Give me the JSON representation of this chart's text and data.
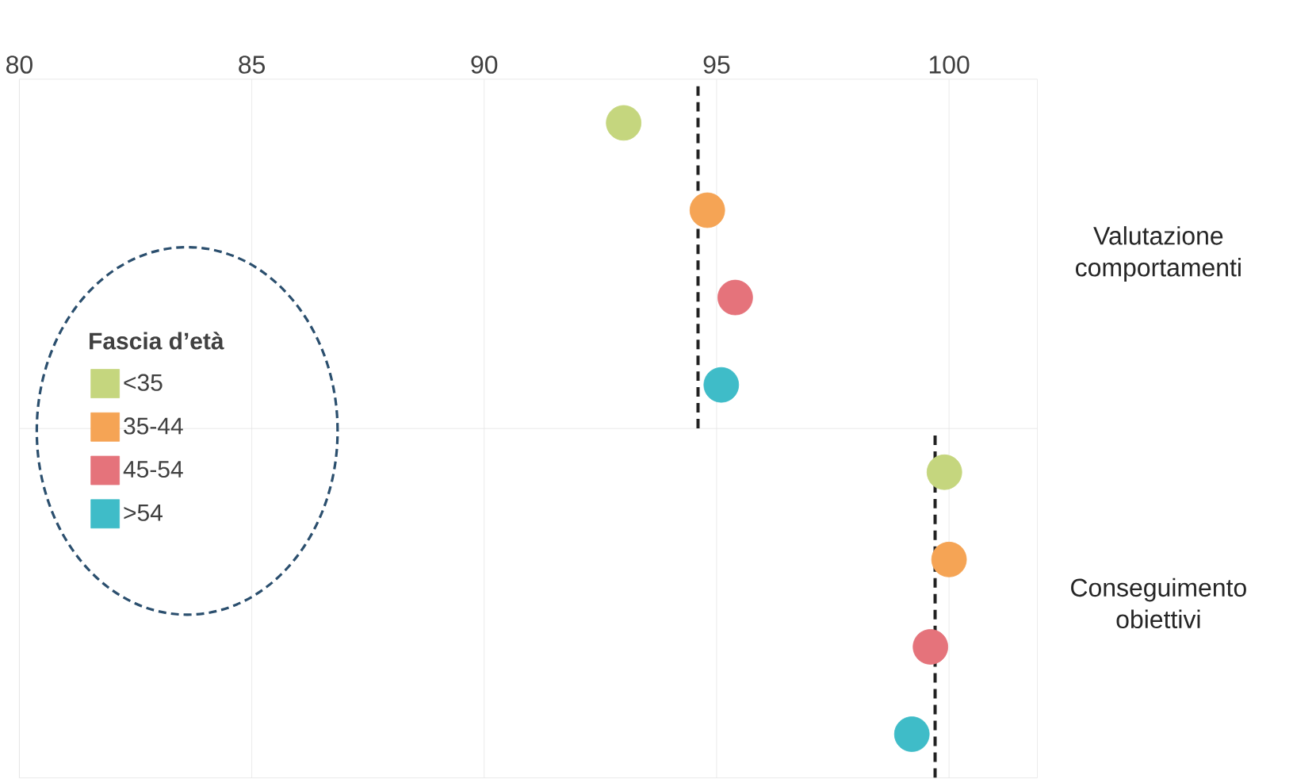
{
  "chart_data": {
    "type": "scatter",
    "orientation": "horizontal",
    "categories": [
      "Valutazione comportamenti",
      "Conseguimento obiettivi"
    ],
    "legend_title": "**Fascia d’età**",
    "legend": "left",
    "grid": "x",
    "marker": "circle",
    "xlim": [
      80,
      101.9
    ],
    "xticks": [
      80,
      85,
      90,
      95,
      100
    ],
    "series": [
      {
        "name": "<35",
        "color": "#c5d67e",
        "values": [
          93.0,
          99.9
        ]
      },
      {
        "name": "35-44",
        "color": "#f5a455",
        "values": [
          94.8,
          100.0
        ]
      },
      {
        "name": "45-54",
        "color": "#e5737b",
        "values": [
          95.4,
          99.6
        ]
      },
      {
        "name": ">54",
        "color": "#3fbcc8",
        "values": [
          95.1,
          99.2
        ]
      }
    ],
    "ref_lines": [
      {
        "axis": "x",
        "value": 94.6,
        "line_style": "dashed",
        "color": "#222222"
      },
      {
        "axis": "x",
        "value": 99.7,
        "line_style": "dashed",
        "color": "#222222"
      }
    ]
  }
}
